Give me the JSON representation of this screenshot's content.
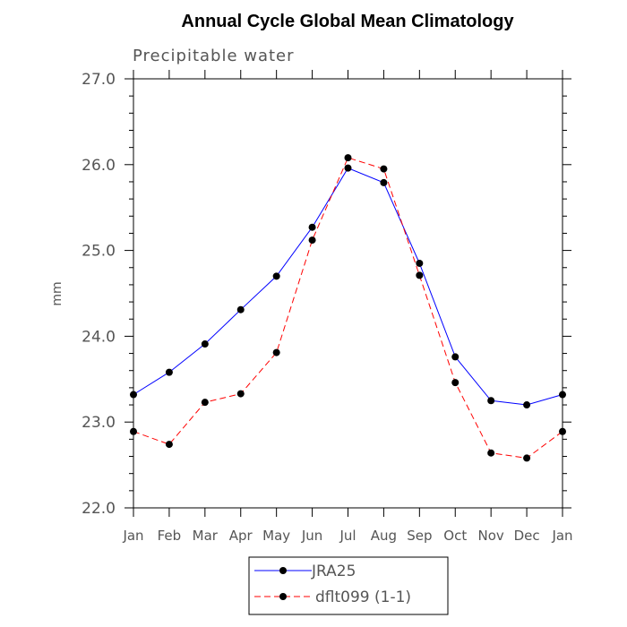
{
  "chart_data": {
    "type": "line",
    "title": "Annual Cycle Global Mean Climatology",
    "subtitle": "Precipitable water",
    "xlabel": "",
    "ylabel": "mm",
    "categories": [
      "Jan",
      "Feb",
      "Mar",
      "Apr",
      "May",
      "Jun",
      "Jul",
      "Aug",
      "Sep",
      "Oct",
      "Nov",
      "Dec",
      "Jan"
    ],
    "ylim": [
      22.0,
      27.0
    ],
    "yticks": [
      "22.0",
      "23.0",
      "24.0",
      "25.0",
      "26.0",
      "27.0"
    ],
    "grid": false,
    "legend_position": "bottom-center",
    "series": [
      {
        "name": "JRA25",
        "color": "#0000ff",
        "dash": "solid",
        "marker": "filled-circle",
        "values": [
          23.32,
          23.58,
          23.91,
          24.31,
          24.7,
          25.27,
          25.96,
          25.79,
          24.85,
          23.76,
          23.25,
          23.2,
          23.32
        ]
      },
      {
        "name": "dflt099 (1-1)",
        "color": "#ff0000",
        "dash": "dashed",
        "marker": "filled-circle",
        "values": [
          22.89,
          22.74,
          23.23,
          23.33,
          23.81,
          25.12,
          26.08,
          25.95,
          24.71,
          23.46,
          22.64,
          22.58,
          22.89
        ]
      }
    ]
  }
}
